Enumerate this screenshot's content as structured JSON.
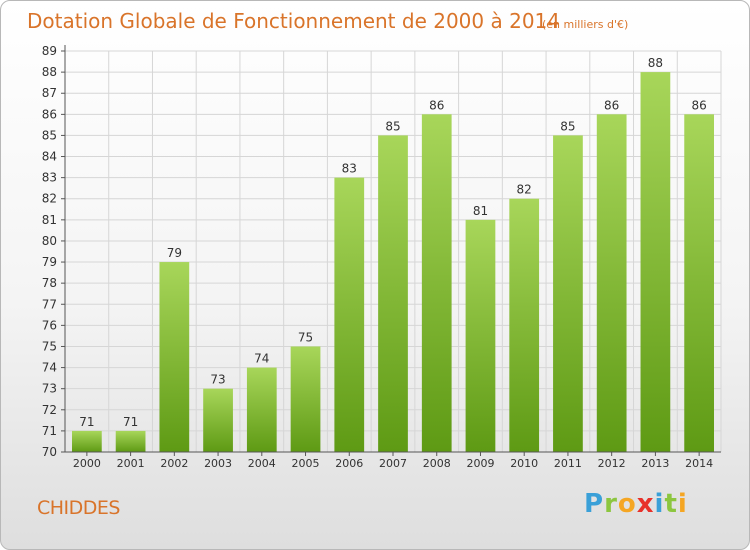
{
  "header": {
    "title": "Dotation Globale de Fonctionnement de 2000 à 2014",
    "subtitle": "(en milliers d'€)"
  },
  "footer": {
    "commune": "CHIDDES",
    "logo_letters": [
      "P",
      "r",
      "o",
      "x",
      "i",
      "t",
      "i"
    ],
    "logo_colors": [
      "#3aa0d8",
      "#8cc63f",
      "#f5a623",
      "#e8312a",
      "#3aa0d8",
      "#8cc63f",
      "#f5a623"
    ]
  },
  "chart_data": {
    "type": "bar",
    "title": "Dotation Globale de Fonctionnement de 2000 à 2014",
    "subtitle": "(en milliers d'€)",
    "categories": [
      "2000",
      "2001",
      "2002",
      "2003",
      "2004",
      "2005",
      "2006",
      "2007",
      "2008",
      "2009",
      "2010",
      "2011",
      "2012",
      "2013",
      "2014"
    ],
    "values": [
      71,
      71,
      79,
      73,
      74,
      75,
      83,
      85,
      86,
      81,
      82,
      85,
      86,
      88,
      86
    ],
    "ylim": [
      70,
      89
    ],
    "yticks": [
      70,
      71,
      72,
      73,
      74,
      75,
      76,
      77,
      78,
      79,
      80,
      81,
      82,
      83,
      84,
      85,
      86,
      87,
      88,
      89
    ],
    "xlabel": "",
    "ylabel": "",
    "grid": true,
    "data_labels": true,
    "legend": false,
    "colors": {
      "bar_light": "#a8d65a",
      "bar_dark": "#5e9a14",
      "grid": "#d6d6d6",
      "axis": "#555555",
      "label": "#333333"
    }
  }
}
